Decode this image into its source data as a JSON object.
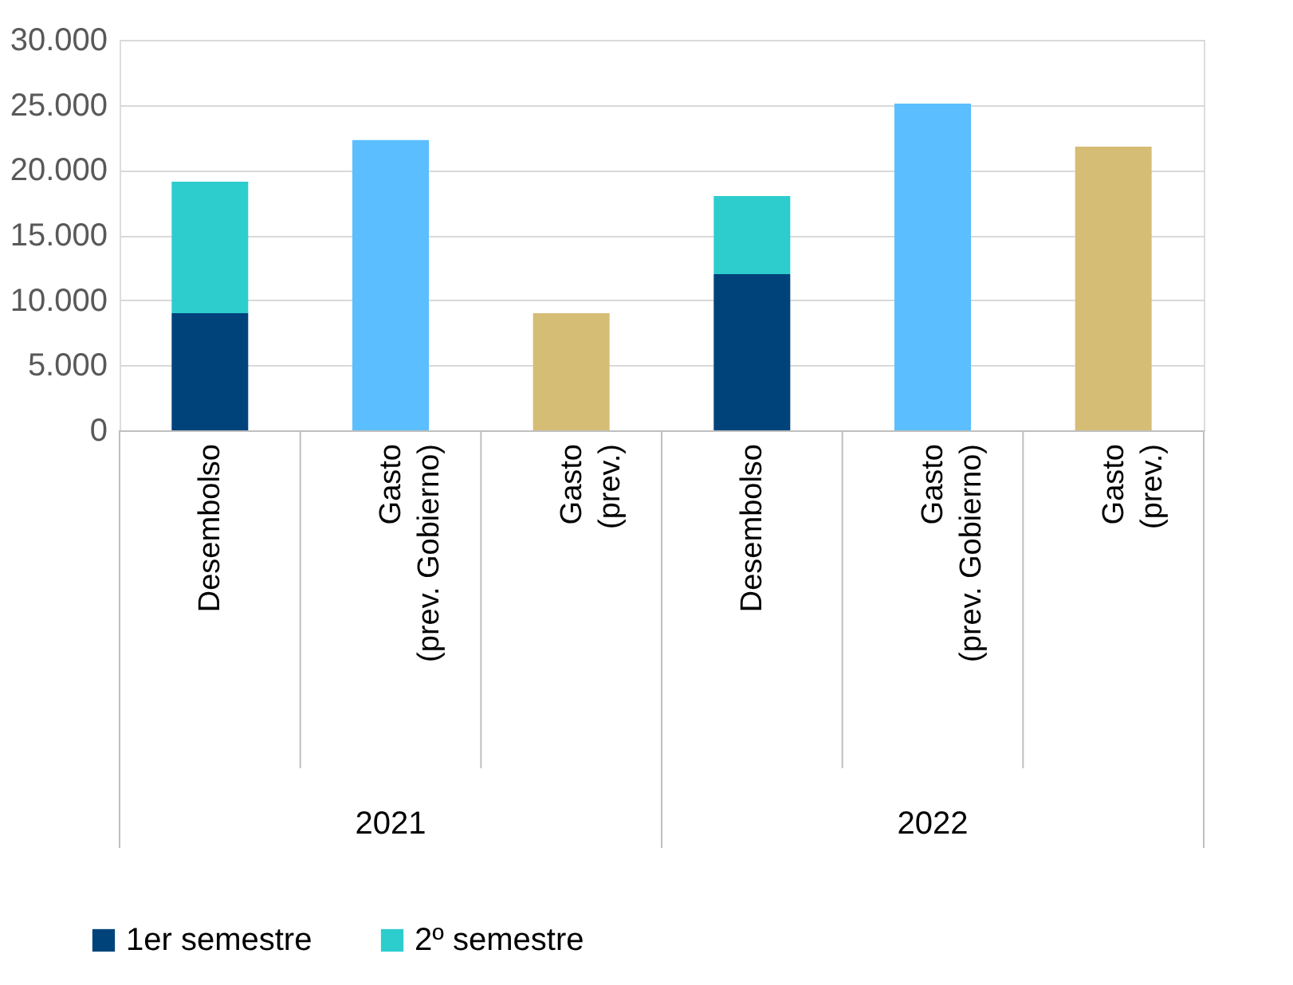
{
  "chart_data": {
    "type": "bar",
    "stacked": true,
    "categories": [
      "Desembolso",
      "Gasto\n(prev. Gobierno)",
      "Gasto\n(prev.)",
      "Desembolso",
      "Gasto\n(prev. Gobierno)",
      "Gasto\n(prev.)"
    ],
    "series": [
      {
        "name": "1er semestre",
        "color": "#00437a",
        "values": [
          9000,
          null,
          null,
          12000,
          null,
          null
        ]
      },
      {
        "name": "2º semestre",
        "color": "#2dcccd",
        "values": [
          10100,
          null,
          null,
          6000,
          null,
          null
        ]
      },
      {
        "colors": [
          "#5bbeff",
          "#5bbeff",
          "#d6bd75",
          "#5bbeff",
          "#5bbeff",
          "#d6bd75"
        ],
        "values": [
          null,
          22300,
          9000,
          null,
          25100,
          21800
        ]
      }
    ],
    "annotations": [
      "2021",
      "2022"
    ],
    "ylim": [
      0,
      30000
    ],
    "yticks": [
      0,
      {
        "value": 5000,
        "label": "5.000"
      },
      {
        "value": 10000,
        "label": "10.000"
      },
      {
        "value": 15000,
        "label": "15.000"
      },
      {
        "value": 20000,
        "label": "20.000"
      },
      {
        "value": 25000,
        "label": "25.000"
      },
      {
        "value": 30000,
        "label": "30.000"
      }
    ],
    "grid": "y",
    "legend": "bottom"
  }
}
